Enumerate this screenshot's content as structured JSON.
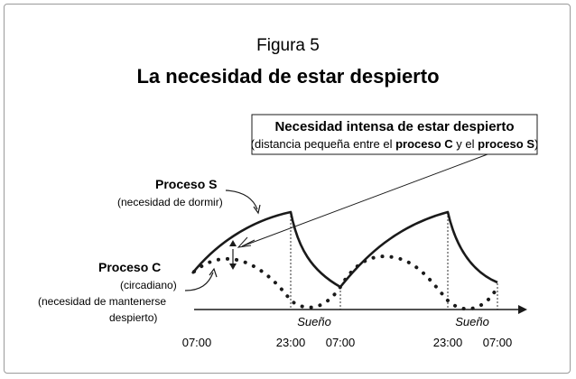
{
  "figure_label": "Figura 5",
  "title": "La necesidad de estar despierto",
  "callout": {
    "title": "Necesidad intensa de estar despierto",
    "sub_pre": "(distancia pequeña entre el ",
    "sub_c": "proceso C",
    "sub_mid": " y el ",
    "sub_s": "proceso S",
    "sub_post": ")"
  },
  "process_s": {
    "name": "Proceso S",
    "desc": "(necesidad de dormir)"
  },
  "process_c": {
    "name": "Proceso C",
    "desc1": "(circadiano)",
    "desc2": "(necesidad de mantenerse",
    "desc3": "despierto)"
  },
  "sleep_labels": [
    "Sueño",
    "Sueño"
  ],
  "time_ticks": [
    "07:00",
    "23:00",
    "07:00",
    "23:00",
    "07:00"
  ],
  "colors": {
    "ink": "#1a1a1a",
    "frame": "#9a9a9a"
  }
}
